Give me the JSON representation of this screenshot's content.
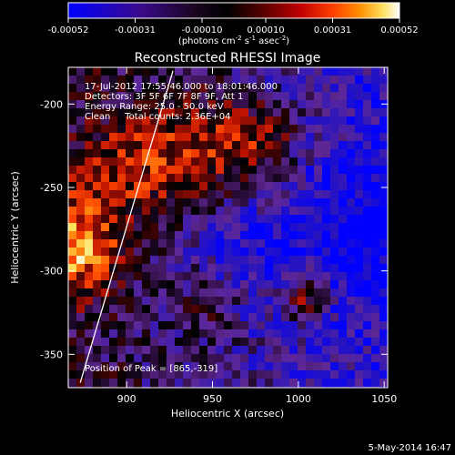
{
  "chart_data": {
    "type": "heatmap",
    "title": "Reconstructed RHESSI Image",
    "xlabel": "Heliocentric X (arcsec)",
    "ylabel": "Heliocentric Y (arcsec)",
    "xlim": [
      866,
      1052
    ],
    "ylim": [
      -370,
      -178
    ],
    "x_ticks": [
      900,
      950,
      1000,
      1050
    ],
    "y_ticks": [
      -200,
      -250,
      -300,
      -350
    ],
    "colorbar": {
      "min": -0.00052,
      "max": 0.00052,
      "tick_labels": [
        "-0.00052",
        "-0.00031",
        "-0.00010",
        "0.00010",
        "0.00031",
        "0.00052"
      ],
      "units_text": "(photons cm",
      "units_sup1": "-2",
      "units_mid": " s",
      "units_sup2": "-1",
      "units_end": " asec",
      "units_sup3": "-2",
      "units_close": ")"
    },
    "info_lines": [
      "17-Jul-2012 17:55:46.000 to 18:01:46.000",
      "Detectors: 3F 5F 6F 7F 8F 9F, Att 1",
      "Energy Range: 25.0 - 50.0 keV",
      "Clean     Total counts: 2.36E+04"
    ],
    "peak_label": "Position of Peak = [865,-319]",
    "limb_line": {
      "x": [
        873,
        927
      ],
      "y": [
        -367,
        -180
      ]
    },
    "colors": {
      "background": "#000000",
      "colormap": [
        "#0000ff",
        "#3a0a8a",
        "#2a0a2a",
        "#000000",
        "#3a0000",
        "#a00000",
        "#ff3000",
        "#ff8000",
        "#ffd000",
        "#ffffff"
      ]
    }
  },
  "footer": {
    "date_text": "5-May-2014 16:47"
  }
}
